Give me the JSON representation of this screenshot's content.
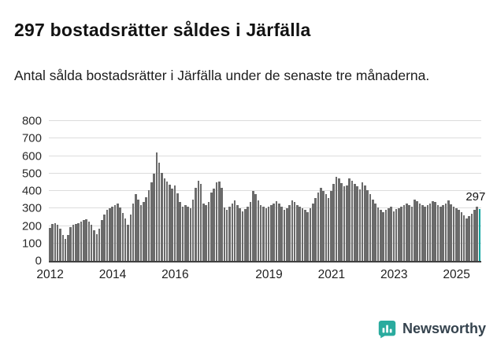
{
  "header": {
    "title": "297 bostadsrätter såldes i Järfälla",
    "subtitle": "Antal sålda bostadsrätter i Järfälla under de senaste tre månaderna."
  },
  "chart_data": {
    "type": "bar",
    "title": "297 bostadsrätter såldes i Järfälla",
    "xlabel": "",
    "ylabel": "",
    "ylim": [
      0,
      800
    ],
    "y_ticks": [
      0,
      100,
      200,
      300,
      400,
      500,
      600,
      700,
      800
    ],
    "x_tick_labels": [
      "2012",
      "2014",
      "2016",
      "2019",
      "2021",
      "2023",
      "2025"
    ],
    "x_tick_years": [
      2012,
      2014,
      2016,
      2019,
      2021,
      2023,
      2025
    ],
    "start_year": 2012,
    "grid": true,
    "legend": "none",
    "bar_color": "#6b6b6b",
    "highlight_color": "#0ba5a0",
    "annotation": {
      "label": "297",
      "value": 297,
      "position": "last-bar"
    },
    "values": [
      190,
      210,
      215,
      205,
      185,
      150,
      125,
      150,
      195,
      205,
      210,
      215,
      225,
      235,
      240,
      225,
      205,
      175,
      155,
      185,
      235,
      265,
      290,
      300,
      310,
      320,
      330,
      305,
      275,
      245,
      205,
      265,
      330,
      380,
      350,
      320,
      335,
      365,
      405,
      450,
      500,
      620,
      560,
      505,
      470,
      455,
      435,
      415,
      430,
      385,
      335,
      310,
      320,
      310,
      300,
      350,
      420,
      460,
      440,
      330,
      320,
      335,
      390,
      415,
      450,
      455,
      420,
      305,
      290,
      310,
      330,
      345,
      320,
      300,
      285,
      295,
      310,
      335,
      400,
      380,
      345,
      320,
      310,
      300,
      310,
      320,
      330,
      340,
      330,
      310,
      290,
      300,
      320,
      345,
      335,
      320,
      310,
      300,
      290,
      280,
      300,
      330,
      360,
      390,
      420,
      400,
      380,
      360,
      400,
      440,
      480,
      470,
      445,
      425,
      430,
      470,
      460,
      440,
      425,
      410,
      450,
      430,
      405,
      380,
      350,
      330,
      305,
      290,
      280,
      290,
      300,
      310,
      285,
      295,
      300,
      310,
      320,
      330,
      320,
      310,
      350,
      340,
      330,
      320,
      310,
      320,
      330,
      340,
      335,
      320,
      310,
      320,
      330,
      345,
      325,
      310,
      300,
      290,
      280,
      260,
      245,
      255,
      270,
      290,
      310,
      297
    ]
  },
  "footer": {
    "brand": "Newsworthy",
    "logo_icon": "bar-chart-bubble-icon",
    "brand_color": "#2aab9e",
    "text_color": "#35434e"
  }
}
